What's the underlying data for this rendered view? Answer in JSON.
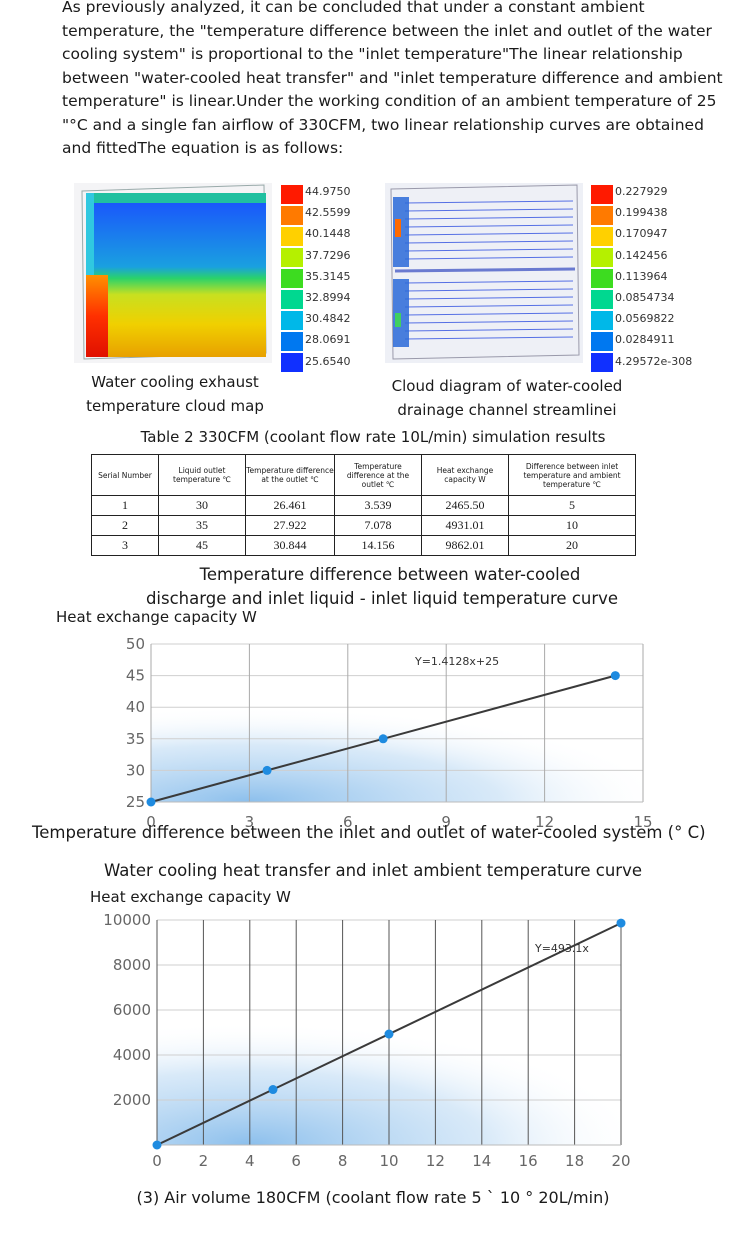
{
  "intro": "As previously analyzed, it can be concluded that under a constant ambient temperature, the \"temperature difference between the inlet and outlet of the water cooling system\" is proportional to the \"inlet temperature\"The linear relationship between \"water-cooled heat transfer\" and \"inlet temperature difference and ambient temperature\" is linear.Under the working condition of an ambient temperature of 25 \"°C and a single fan airflow of 330CFM, two linear relationship curves are obtained and fittedThe equation is as follows:",
  "figures": {
    "left_caption_line1": "Water cooling exhaust",
    "left_caption_line2": "temperature cloud map",
    "right_caption_line1": "Cloud diagram of water-cooled",
    "right_caption_line2": "drainage channel streamlinei",
    "left_legend": [
      "44.9750",
      "42.5599",
      "40.1448",
      "37.7296",
      "35.3145",
      "32.8994",
      "30.4842",
      "28.0691",
      "25.6540"
    ],
    "right_legend": [
      "0.227929",
      "0.199438",
      "0.170947",
      "0.142456",
      "0.113964",
      "0.0854734",
      "0.0569822",
      "0.0284911",
      "4.29572e-308"
    ],
    "legend_colors": [
      "#ff1a00",
      "#ff7a00",
      "#ffd000",
      "#b5f000",
      "#3ddc20",
      "#00d890",
      "#00b8e8",
      "#0078f0",
      "#1030ff"
    ]
  },
  "table": {
    "title": "Table 2 330CFM (coolant flow rate 10L/min) simulation results",
    "headers": [
      "Serial Number",
      "Liquid outlet temperature ℃",
      "Temperature difference at the outlet ℃",
      "Temperature difference at the outlet ℃",
      "Heat exchange capacity W",
      "Difference between inlet temperature and ambient temperature ℃"
    ],
    "rows": [
      [
        "1",
        "30",
        "26.461",
        "3.539",
        "2465.50",
        "5"
      ],
      [
        "2",
        "35",
        "27.922",
        "7.078",
        "4931.01",
        "10"
      ],
      [
        "3",
        "45",
        "30.844",
        "14.156",
        "9862.01",
        "20"
      ]
    ]
  },
  "chart1_title_line1": "Temperature difference between water-cooled",
  "chart1_title_line2": "discharge and inlet liquid - inlet liquid temperature curve",
  "chart2_title": "Water cooling heat transfer and inlet ambient temperature curve",
  "chart2_caption": "(3) Air volume 180CFM (coolant flow rate 5 ` 10 ° 20L/min)",
  "chart_data": [
    {
      "type": "line",
      "ylabel": "Heat exchange capacity W",
      "xlabel": "Temperature difference between the inlet and outlet of water-cooled system (° C)",
      "xlim": [
        0,
        15
      ],
      "ylim": [
        25,
        50
      ],
      "xticks": [
        0,
        3,
        6,
        9,
        12,
        15
      ],
      "yticks": [
        25,
        30,
        35,
        40,
        45,
        50
      ],
      "x": [
        0,
        3.539,
        7.078,
        14.156
      ],
      "y": [
        25,
        30,
        35,
        45
      ],
      "annotation": "Y=1.4128x+25",
      "grid": true
    },
    {
      "type": "line",
      "ylabel": "Heat exchange capacity W",
      "xlabel": "",
      "xlim": [
        0,
        20
      ],
      "ylim": [
        0,
        10000
      ],
      "xticks": [
        0,
        2,
        4,
        6,
        8,
        10,
        12,
        14,
        16,
        18,
        20
      ],
      "yticks": [
        2000,
        4000,
        6000,
        8000,
        10000
      ],
      "x": [
        0,
        5,
        10,
        20
      ],
      "y": [
        0,
        2465.5,
        4931.01,
        9862.01
      ],
      "annotation": "Y=493.1x",
      "grid": true
    }
  ]
}
